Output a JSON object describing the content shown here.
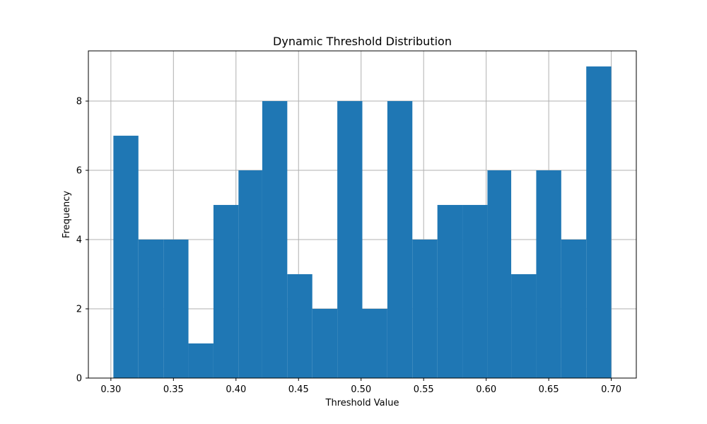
{
  "chart_data": {
    "type": "bar",
    "title": "Dynamic Threshold Distribution",
    "xlabel": "Threshold Value",
    "ylabel": "Frequency",
    "bin_edges": [
      0.302,
      0.322,
      0.342,
      0.362,
      0.382,
      0.402,
      0.421,
      0.441,
      0.461,
      0.481,
      0.501,
      0.521,
      0.541,
      0.561,
      0.581,
      0.601,
      0.62,
      0.64,
      0.66,
      0.68,
      0.7
    ],
    "values": [
      7,
      4,
      4,
      1,
      5,
      6,
      8,
      3,
      2,
      8,
      2,
      8,
      4,
      5,
      5,
      6,
      3,
      6,
      4,
      9
    ],
    "xlim": [
      0.282,
      0.72
    ],
    "ylim": [
      0,
      9.45
    ],
    "xticks": [
      0.3,
      0.35,
      0.4,
      0.45,
      0.5,
      0.55,
      0.6,
      0.65,
      0.7
    ],
    "xtick_labels": [
      "0.30",
      "0.35",
      "0.40",
      "0.45",
      "0.50",
      "0.55",
      "0.60",
      "0.65",
      "0.70"
    ],
    "yticks": [
      0,
      2,
      4,
      6,
      8
    ],
    "ytick_labels": [
      "0",
      "2",
      "4",
      "6",
      "8"
    ],
    "grid": true,
    "bar_color": "#1f77b4"
  }
}
